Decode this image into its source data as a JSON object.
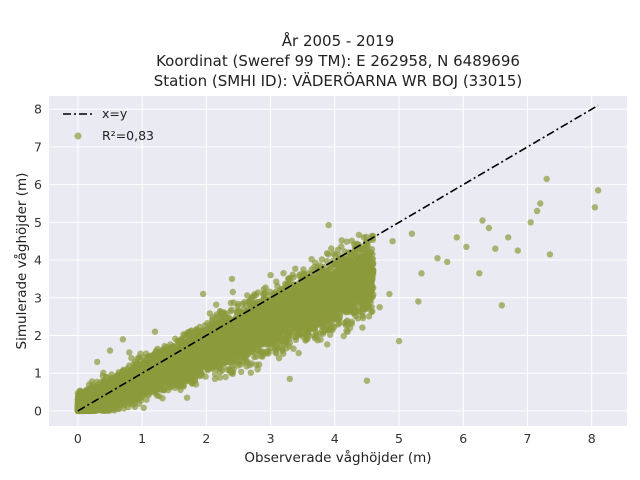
{
  "chart_data": {
    "type": "scatter",
    "title_lines": [
      "År 2005 - 2019",
      "Koordinat (Sweref 99 TM): E 262958, N 6489696",
      "Station (SMHI ID): VÄDERÖARNA WR BOJ (33015)"
    ],
    "xlabel": "Observerade våghöjder (m)",
    "ylabel": "Simulerade våghöjder (m)",
    "xlim": [
      -0.45,
      8.55
    ],
    "ylim": [
      -0.4,
      8.35
    ],
    "xticks": [
      0,
      1,
      2,
      3,
      4,
      5,
      6,
      7,
      8
    ],
    "yticks": [
      0,
      1,
      2,
      3,
      4,
      5,
      6,
      7,
      8
    ],
    "grid": true,
    "background_color": "#eaeaf2",
    "legend_position": "upper-left",
    "series": [
      {
        "name": "x=y",
        "kind": "line",
        "style": "dash-dot",
        "color": "#000000",
        "x": [
          0,
          8.1
        ],
        "y": [
          0,
          8.1
        ]
      },
      {
        "name": "R²=0,83",
        "kind": "scatter",
        "color": "#8c9a3c",
        "alpha": 0.7,
        "point_cloud": {
          "count": 9000,
          "x_range": [
            0,
            4.6
          ],
          "slope": 0.78,
          "intercept": 0.05,
          "spread": 0.28
        },
        "outliers": [
          [
            8.1,
            5.85
          ],
          [
            8.05,
            5.4
          ],
          [
            7.3,
            6.15
          ],
          [
            7.2,
            5.5
          ],
          [
            7.15,
            5.3
          ],
          [
            7.35,
            4.15
          ],
          [
            6.85,
            4.25
          ],
          [
            6.7,
            4.6
          ],
          [
            6.6,
            2.8
          ],
          [
            6.5,
            4.3
          ],
          [
            6.25,
            3.65
          ],
          [
            6.05,
            4.35
          ],
          [
            5.75,
            3.95
          ],
          [
            5.6,
            4.05
          ],
          [
            5.35,
            3.65
          ],
          [
            5.2,
            4.7
          ],
          [
            4.85,
            3.1
          ],
          [
            5.0,
            1.85
          ],
          [
            4.7,
            2.75
          ],
          [
            4.5,
            0.8
          ],
          [
            3.3,
            0.85
          ],
          [
            2.3,
            0.9
          ],
          [
            2.4,
            3.5
          ],
          [
            1.95,
            3.1
          ],
          [
            1.2,
            2.1
          ],
          [
            0.8,
            1.55
          ],
          [
            0.7,
            1.9
          ],
          [
            0.3,
            1.3
          ],
          [
            0.5,
            1.6
          ],
          [
            3.0,
            3.6
          ],
          [
            3.6,
            2.0
          ],
          [
            4.2,
            2.1
          ],
          [
            2.8,
            1.1
          ],
          [
            1.7,
            0.35
          ],
          [
            5.3,
            2.9
          ],
          [
            6.3,
            5.05
          ],
          [
            6.4,
            4.85
          ],
          [
            5.9,
            4.6
          ],
          [
            7.05,
            5.0
          ],
          [
            4.9,
            4.5
          ]
        ]
      }
    ]
  }
}
